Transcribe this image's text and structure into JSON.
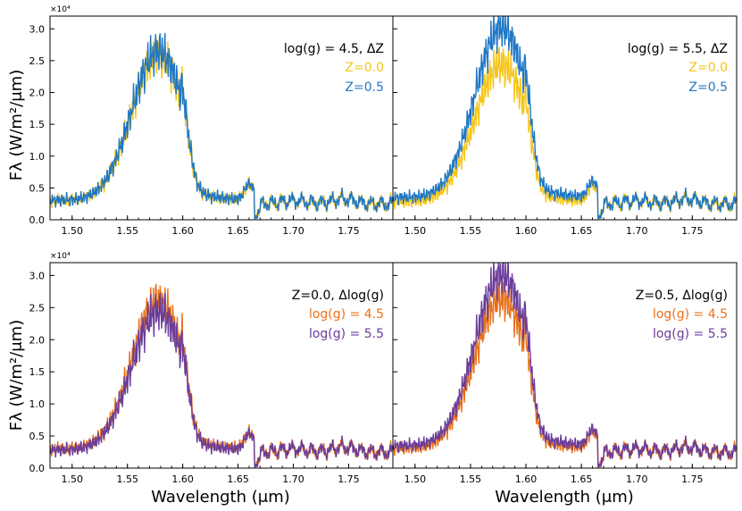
{
  "figure": {
    "ylabel": "Fλ (W/m²/μm)",
    "xlabel": "Wavelength (μm)",
    "multiplier": "×10⁴"
  },
  "chart_data": [
    {
      "type": "line",
      "panel": "top-left",
      "xlim": [
        1.48,
        1.79
      ],
      "ylim": [
        0,
        3.2
      ],
      "xticks": [
        "1.50",
        "1.55",
        "1.60",
        "1.65",
        "1.70",
        "1.75"
      ],
      "yticks": [
        "0.0",
        "0.5",
        "1.0",
        "1.5",
        "2.0",
        "2.5",
        "3.0"
      ],
      "legend_title": "log(g) = 4.5, ΔZ",
      "legend_placement": "top-right",
      "series": [
        {
          "name": "Z=0.0",
          "color": "#f5c518",
          "amp": 2.5,
          "order": 0
        },
        {
          "name": "Z=0.5",
          "color": "#1f77c4",
          "amp": 2.55,
          "order": 1
        }
      ]
    },
    {
      "type": "line",
      "panel": "top-right",
      "xlim": [
        1.48,
        1.79
      ],
      "ylim": [
        0,
        3.2
      ],
      "xticks": [
        "1.50",
        "1.55",
        "1.60",
        "1.65",
        "1.70",
        "1.75"
      ],
      "yticks": [],
      "legend_title": "log(g) = 5.5, ΔZ",
      "legend_placement": "top-right",
      "series": [
        {
          "name": "Z=0.0",
          "color": "#f5c518",
          "amp": 2.35,
          "order": 0
        },
        {
          "name": "Z=0.5",
          "color": "#1f77c4",
          "amp": 2.9,
          "order": 1
        }
      ]
    },
    {
      "type": "line",
      "panel": "bottom-left",
      "xlim": [
        1.48,
        1.79
      ],
      "ylim": [
        0,
        3.2
      ],
      "xticks": [
        "1.50",
        "1.55",
        "1.60",
        "1.65",
        "1.70",
        "1.75"
      ],
      "yticks": [
        "0.0",
        "0.5",
        "1.0",
        "1.5",
        "2.0",
        "2.5",
        "3.0"
      ],
      "legend_title": "Z=0.0, Δlog(g)",
      "legend_placement": "top-right",
      "series": [
        {
          "name": "log(g) = 4.5",
          "color": "#e8711a",
          "amp": 2.5,
          "order": 0
        },
        {
          "name": "log(g) = 5.5",
          "color": "#6a3d9a",
          "amp": 2.35,
          "order": 1
        }
      ]
    },
    {
      "type": "line",
      "panel": "bottom-right",
      "xlim": [
        1.48,
        1.79
      ],
      "ylim": [
        0,
        3.2
      ],
      "xticks": [
        "1.50",
        "1.55",
        "1.60",
        "1.65",
        "1.70",
        "1.75"
      ],
      "yticks": [],
      "legend_title": "Z=0.5, Δlog(g)",
      "legend_placement": "top-right",
      "series": [
        {
          "name": "log(g) = 4.5",
          "color": "#e8711a",
          "amp": 2.55,
          "order": 0
        },
        {
          "name": "log(g) = 5.5",
          "color": "#6a3d9a",
          "amp": 2.9,
          "order": 1
        }
      ]
    }
  ]
}
